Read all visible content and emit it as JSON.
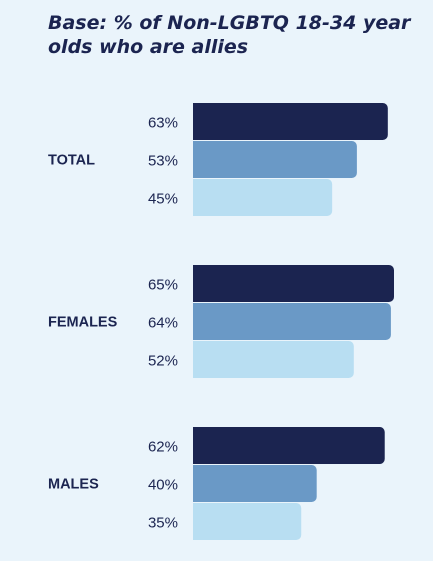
{
  "title": "Base: % of Non-LGBTQ 18-34 year olds who are allies",
  "colors": {
    "background": "#eaf4fb",
    "series": [
      "#1b2450",
      "#6a99c6",
      "#b8def2"
    ],
    "text": "#1b2450"
  },
  "chart_data": {
    "type": "bar",
    "orientation": "horizontal",
    "title": "Base: % of Non-LGBTQ 18-34 year olds who are allies",
    "categories": [
      "TOTAL",
      "FEMALES",
      "MALES"
    ],
    "series": [
      {
        "values": [
          63,
          65,
          62
        ]
      },
      {
        "values": [
          53,
          64,
          40
        ]
      },
      {
        "values": [
          45,
          52,
          35
        ]
      }
    ],
    "value_labels": [
      [
        "63%",
        "53%",
        "45%"
      ],
      [
        "65%",
        "64%",
        "52%"
      ],
      [
        "62%",
        "40%",
        "35%"
      ]
    ],
    "xlim": [
      0,
      65
    ],
    "grid": false,
    "legend": "none"
  }
}
